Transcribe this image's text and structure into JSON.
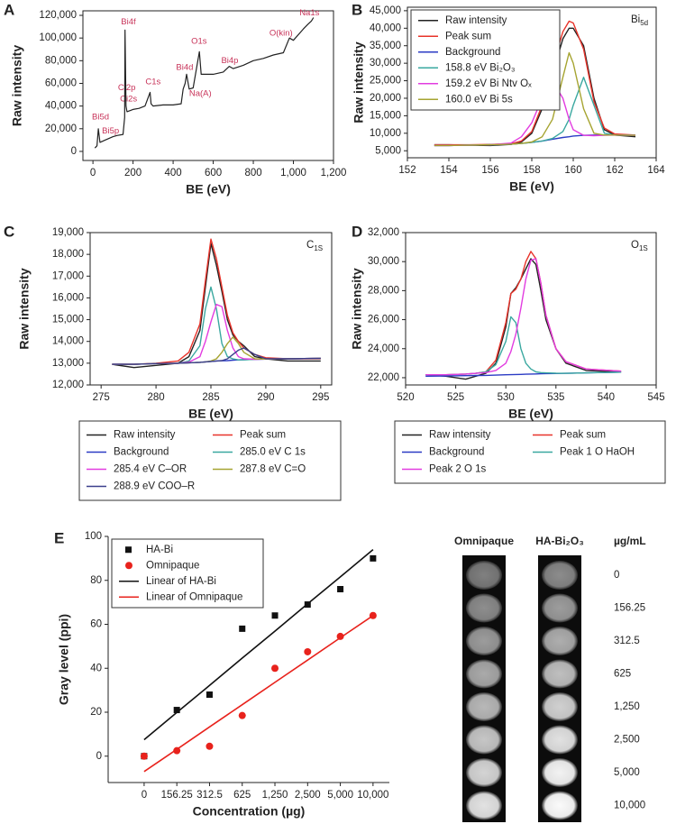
{
  "chart_data": [
    {
      "type": "line",
      "panel": "A",
      "ylabel": "Raw intensity",
      "xlabel": "BE (eV)",
      "frame": true,
      "color": "#222222",
      "xlim": [
        -50,
        1200
      ],
      "xticks": [
        0,
        200,
        400,
        600,
        800,
        {
          "value": 1000,
          "label": "1,000"
        },
        {
          "value": 1200,
          "label": "1,200"
        }
      ],
      "ylim": [
        -8000,
        124000
      ],
      "yticks": [
        0,
        {
          "value": 20000,
          "label": "20,000"
        },
        {
          "value": 40000,
          "label": "40,000"
        },
        {
          "value": 60000,
          "label": "60,000"
        },
        {
          "value": 80000,
          "label": "80,000"
        },
        {
          "value": 100000,
          "label": "100,000"
        },
        {
          "value": 120000,
          "label": "120,000"
        }
      ],
      "x": [
        10,
        20,
        27,
        35,
        60,
        100,
        120,
        150,
        158,
        160,
        165,
        170,
        200,
        230,
        260,
        285,
        290,
        300,
        350,
        400,
        440,
        450,
        460,
        467,
        480,
        500,
        531,
        540,
        600,
        650,
        680,
        700,
        750,
        800,
        850,
        900,
        950,
        980,
        1000,
        1050,
        1072,
        1090,
        1100
      ],
      "values": [
        3000,
        5000,
        20000,
        8000,
        10000,
        13000,
        14000,
        15000,
        30000,
        107000,
        40000,
        35000,
        37000,
        38000,
        40000,
        52000,
        42000,
        40000,
        41000,
        41000,
        42000,
        55000,
        60000,
        68000,
        55000,
        56000,
        88000,
        68000,
        68000,
        70000,
        75000,
        73000,
        76000,
        80000,
        82000,
        85000,
        87000,
        100000,
        98000,
        108000,
        112000,
        115000,
        118000
      ],
      "annotations": [
        {
          "text": "Bi5d",
          "x": -5,
          "y": 30000
        },
        {
          "text": "Bi5p",
          "x": 45,
          "y": 18000
        },
        {
          "text": "Bi4f",
          "x": 140,
          "y": 114000
        },
        {
          "text": "Ci2p",
          "x": 125,
          "y": 56000
        },
        {
          "text": "Ci2s",
          "x": 135,
          "y": 46000
        },
        {
          "text": "C1s",
          "x": 262,
          "y": 61000
        },
        {
          "text": "Bi4d",
          "x": 415,
          "y": 74000
        },
        {
          "text": "Na(A)",
          "x": 480,
          "y": 51000
        },
        {
          "text": "O1s",
          "x": 490,
          "y": 97000
        },
        {
          "text": "Bi4p",
          "x": 640,
          "y": 80000
        },
        {
          "text": "O(kin)",
          "x": 880,
          "y": 104000
        },
        {
          "text": "Na1s",
          "x": 1030,
          "y": 122000
        }
      ]
    },
    {
      "type": "line",
      "panel": "B",
      "ylabel": "Raw intensity",
      "xlabel": "BE (eV)",
      "frame": true,
      "legend": "upper left",
      "corner_label": {
        "text": "Bi",
        "sub": "5d"
      },
      "xlim": [
        152,
        164
      ],
      "xticks": [
        152,
        154,
        156,
        158,
        160,
        162,
        164
      ],
      "ylim": [
        3000,
        46000
      ],
      "yticks": [
        {
          "value": 5000,
          "label": "5,000"
        },
        {
          "value": 10000,
          "label": "10,000"
        },
        {
          "value": 15000,
          "label": "15,000"
        },
        {
          "value": 20000,
          "label": "20,000"
        },
        {
          "value": 25000,
          "label": "25,000"
        },
        {
          "value": 30000,
          "label": "30,000"
        },
        {
          "value": 35000,
          "label": "35,000"
        },
        {
          "value": 40000,
          "label": "40,000"
        },
        {
          "value": 45000,
          "label": "45,000"
        }
      ],
      "x": [
        153.3,
        154,
        155,
        156,
        157,
        157.5,
        158,
        158.5,
        159,
        159.5,
        159.8,
        160,
        160.5,
        161,
        161.5,
        162,
        163
      ],
      "series": [
        {
          "name": "Raw intensity",
          "color": "#222222",
          "values": [
            6700,
            6700,
            6600,
            6500,
            6800,
            7500,
            10000,
            17000,
            27000,
            37000,
            40000,
            40000,
            35000,
            20000,
            11000,
            9500,
            9000
          ]
        },
        {
          "name": "Peak sum",
          "color": "#e8332a",
          "values": [
            6700,
            6700,
            6700,
            6800,
            7000,
            7800,
            10500,
            18000,
            29000,
            39000,
            42000,
            41500,
            34000,
            19000,
            11500,
            9800,
            9500
          ]
        },
        {
          "name": "Background",
          "color": "#2b3bc4",
          "values": [
            6500,
            6500,
            6600,
            6700,
            6900,
            7100,
            7400,
            7800,
            8300,
            8800,
            9000,
            9200,
            9400,
            9500,
            9500,
            9500,
            9400
          ]
        },
        {
          "name": "158.8 eV Bi₂O₃",
          "color": "#3aa8a0",
          "values": [
            6500,
            6500,
            6600,
            6700,
            6900,
            7100,
            7400,
            7800,
            8500,
            10500,
            14000,
            18000,
            26000,
            18000,
            10000,
            9500,
            9400
          ]
        },
        {
          "name": "159.2 eV Bi Ntv Oₓ",
          "color": "#e23ce0",
          "values": [
            6500,
            6500,
            6600,
            6700,
            7200,
            9000,
            13000,
            20000,
            25000,
            20000,
            14000,
            11000,
            9400,
            9300,
            9400,
            9500,
            9400
          ]
        },
        {
          "name": "160.0 eV Bi 5s",
          "color": "#a6a431",
          "values": [
            6500,
            6500,
            6600,
            6700,
            6900,
            7100,
            7500,
            9000,
            14000,
            26000,
            33000,
            30000,
            17000,
            10000,
            9500,
            9500,
            9400
          ]
        }
      ]
    },
    {
      "type": "line",
      "panel": "C",
      "ylabel": "Raw intensity",
      "xlabel": "BE (eV)",
      "frame": true,
      "legend": "below",
      "corner_label": {
        "text": "C",
        "sub": "1S"
      },
      "xlim": [
        274,
        296
      ],
      "xticks": [
        275,
        280,
        285,
        290,
        295
      ],
      "ylim": [
        12000,
        19000
      ],
      "yticks": [
        {
          "value": 12000,
          "label": "12,000"
        },
        {
          "value": 13000,
          "label": "13,000"
        },
        {
          "value": 14000,
          "label": "14,000"
        },
        {
          "value": 15000,
          "label": "15,000"
        },
        {
          "value": 16000,
          "label": "16,000"
        },
        {
          "value": 17000,
          "label": "17,000"
        },
        {
          "value": 18000,
          "label": "18,000"
        },
        {
          "value": 19000,
          "label": "19,000"
        }
      ],
      "x": [
        276,
        278,
        280,
        282,
        283,
        284,
        284.5,
        285,
        285.5,
        286,
        286.5,
        287,
        287.5,
        288,
        289,
        290,
        292,
        295
      ],
      "series": [
        {
          "name": "Raw intensity",
          "color": "#222222",
          "values": [
            12950,
            12800,
            12900,
            13000,
            13300,
            14500,
            16500,
            18500,
            17500,
            16300,
            15000,
            14300,
            14000,
            13800,
            13300,
            13200,
            13100,
            13100
          ]
        },
        {
          "name": "Peak sum",
          "color": "#e8332a",
          "values": [
            12950,
            12950,
            13000,
            13100,
            13500,
            14800,
            16800,
            18700,
            17800,
            16500,
            15200,
            14400,
            14000,
            13700,
            13400,
            13250,
            13200,
            13200
          ]
        },
        {
          "name": "Background",
          "color": "#2b3bc4",
          "values": [
            12950,
            12950,
            12980,
            13000,
            13020,
            13040,
            13060,
            13080,
            13100,
            13110,
            13120,
            13140,
            13150,
            13160,
            13180,
            13190,
            13200,
            13220
          ]
        },
        {
          "name": "285.0 eV C 1s",
          "color": "#3aa8a0",
          "values": [
            12950,
            12950,
            12980,
            13000,
            13100,
            13800,
            15500,
            16500,
            15500,
            13900,
            13300,
            13200,
            13150,
            13160,
            13180,
            13190,
            13200,
            13220
          ]
        },
        {
          "name": "285.4 eV C–OR",
          "color": "#e23ce0",
          "values": [
            12950,
            12950,
            12980,
            13000,
            13050,
            13300,
            14000,
            14900,
            15700,
            15600,
            14500,
            13700,
            13300,
            13200,
            13180,
            13190,
            13200,
            13220
          ]
        },
        {
          "name": "287.8 eV C=O",
          "color": "#a6a431",
          "values": [
            12950,
            12950,
            12980,
            13000,
            13020,
            13040,
            13060,
            13100,
            13200,
            13500,
            13900,
            14200,
            13900,
            13500,
            13200,
            13190,
            13200,
            13220
          ]
        },
        {
          "name": "288.9 eV COO–R",
          "color": "#3b3f8c",
          "values": [
            12950,
            12950,
            12980,
            13000,
            13020,
            13040,
            13060,
            13080,
            13100,
            13120,
            13200,
            13400,
            13600,
            13700,
            13400,
            13200,
            13200,
            13220
          ]
        }
      ]
    },
    {
      "type": "line",
      "panel": "D",
      "ylabel": "Raw intensity",
      "xlabel": "BE (eV)",
      "frame": true,
      "legend": "below",
      "corner_label": {
        "text": "O",
        "sub": "1S"
      },
      "xlim": [
        520,
        545
      ],
      "xticks": [
        520,
        525,
        530,
        535,
        540,
        545
      ],
      "ylim": [
        21500,
        32000
      ],
      "yticks": [
        {
          "value": 22000,
          "label": "22,000"
        },
        {
          "value": 24000,
          "label": "24,000"
        },
        {
          "value": 26000,
          "label": "26,000"
        },
        {
          "value": 28000,
          "label": "28,000"
        },
        {
          "value": 30000,
          "label": "30,000"
        },
        {
          "value": 32000,
          "label": "32,000"
        }
      ],
      "x": [
        522,
        524,
        526,
        527,
        528,
        529,
        530,
        530.5,
        531,
        531.5,
        532,
        532.5,
        533,
        533.5,
        534,
        535,
        536,
        538,
        541.5
      ],
      "series": [
        {
          "name": "Raw intensity",
          "color": "#222222",
          "values": [
            22200,
            22100,
            21900,
            22100,
            22300,
            23000,
            25500,
            27800,
            28200,
            28800,
            29500,
            30200,
            29800,
            28000,
            26000,
            24000,
            23000,
            22500,
            22400
          ]
        },
        {
          "name": "Peak sum",
          "color": "#e8332a",
          "values": [
            22200,
            22200,
            22250,
            22300,
            22400,
            23200,
            25800,
            27800,
            28100,
            28800,
            30000,
            30700,
            30200,
            28500,
            26300,
            24000,
            23100,
            22600,
            22450
          ]
        },
        {
          "name": "Background",
          "color": "#2b3bc4",
          "values": [
            22100,
            22120,
            22140,
            22150,
            22160,
            22180,
            22200,
            22210,
            22220,
            22230,
            22240,
            22250,
            22260,
            22270,
            22280,
            22290,
            22300,
            22330,
            22380
          ]
        },
        {
          "name": "Peak 1 O HaOH",
          "color": "#3aa8a0",
          "values": [
            22200,
            22200,
            22250,
            22300,
            22400,
            22900,
            24500,
            26200,
            25800,
            24000,
            23000,
            22600,
            22400,
            22350,
            22330,
            22310,
            22300,
            22330,
            22380
          ]
        },
        {
          "name": "Peak 2 O 1s",
          "color": "#e23ce0",
          "values": [
            22200,
            22200,
            22250,
            22300,
            22350,
            22500,
            23000,
            23800,
            25000,
            26800,
            28800,
            30100,
            30200,
            28500,
            26300,
            24000,
            23100,
            22600,
            22450
          ]
        }
      ]
    },
    {
      "type": "scatter",
      "panel": "E",
      "ylabel": "Gray level (ppi)",
      "xlabel": "Concentration (µg)",
      "frame": false,
      "legend": "upper left",
      "categories": [
        "0",
        "156.25",
        "312.5",
        "625",
        "1,250",
        "2,500",
        "5,000",
        "10,000"
      ],
      "ylim": [
        -12,
        100
      ],
      "yticks": [
        0,
        20,
        40,
        60,
        80,
        100
      ],
      "series": [
        {
          "name": "HA-Bi",
          "color": "#111111",
          "marker": "square",
          "values": [
            0,
            21,
            28,
            58,
            64,
            69,
            76,
            90
          ]
        },
        {
          "name": "Omnipaque",
          "color": "#e8221c",
          "marker": "circle",
          "values": [
            0,
            2.5,
            4.5,
            18.5,
            40,
            47.5,
            54.5,
            64
          ]
        },
        {
          "name": "Linear of HA-Bi",
          "color": "#111111",
          "marker": "line",
          "values": [
            7.5,
            19.9,
            32.2,
            44.6,
            56.9,
            69.3,
            81.6,
            94
          ]
        },
        {
          "name": "Linear of Omnipaque",
          "color": "#e8221c",
          "marker": "line",
          "values": [
            -7,
            3.1,
            13.3,
            23.4,
            33.6,
            43.7,
            53.9,
            64
          ]
        }
      ]
    }
  ],
  "phantom": {
    "headers": [
      "Omnipaque",
      "HA-Bi₂O₃",
      "µg/mL"
    ],
    "rows": [
      "0",
      "156.25",
      "312.5",
      "625",
      "1,250",
      "2,500",
      "5,000",
      "10,000"
    ]
  }
}
